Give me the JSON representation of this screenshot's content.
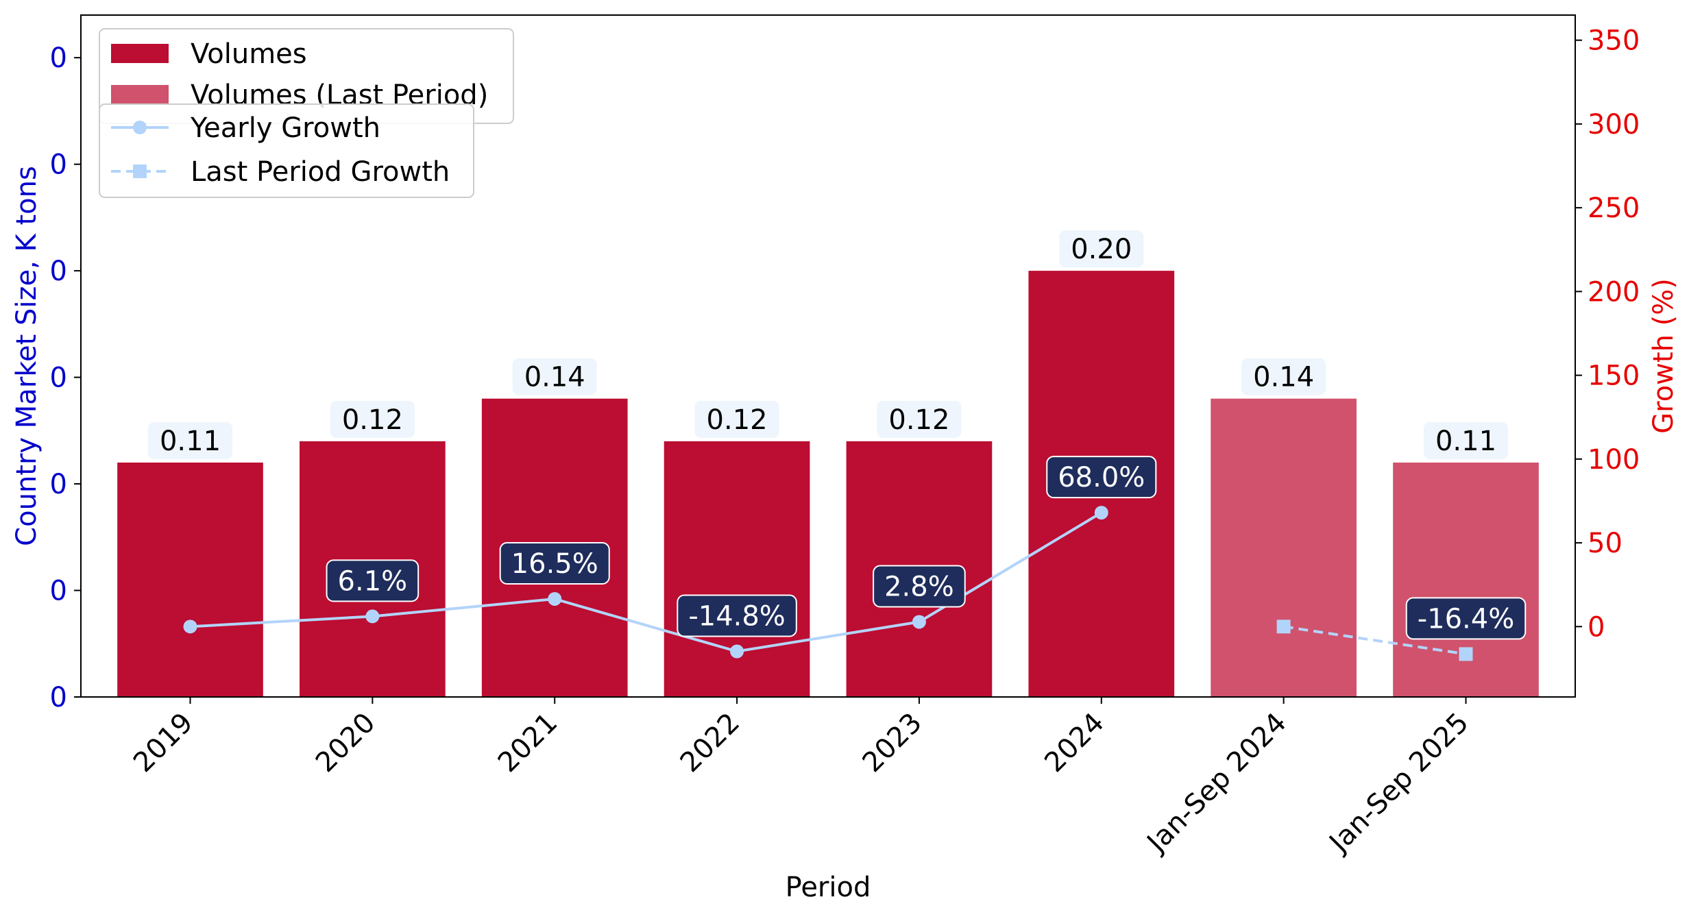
{
  "chart_data": {
    "type": "bar",
    "categories": [
      "2019",
      "2020",
      "2021",
      "2022",
      "2023",
      "2024",
      "Jan-Sep 2024",
      "Jan-Sep 2025"
    ],
    "series": [
      {
        "name": "Volumes",
        "axis": "left",
        "values": [
          0.11,
          0.12,
          0.14,
          0.12,
          0.12,
          0.2,
          null,
          null
        ],
        "labels": [
          "0.11",
          "0.12",
          "0.14",
          "0.12",
          "0.12",
          "0.20",
          null,
          null
        ],
        "color": "#bc0d32"
      },
      {
        "name": "Volumes (Last Period)",
        "axis": "left",
        "values": [
          null,
          null,
          null,
          null,
          null,
          null,
          0.14,
          0.11
        ],
        "labels": [
          null,
          null,
          null,
          null,
          null,
          null,
          "0.14",
          "0.11"
        ],
        "color": "#d0526c"
      },
      {
        "name": "Yearly Growth",
        "type": "line",
        "axis": "right",
        "marker": "circle",
        "line_style": "solid",
        "values": [
          0,
          6.1,
          16.5,
          -14.8,
          2.8,
          68.0,
          null,
          null
        ],
        "labels": [
          null,
          "6.1%",
          "16.5%",
          "-14.8%",
          "2.8%",
          "68.0%",
          null,
          null
        ],
        "color": "#b3d4fa"
      },
      {
        "name": "Last Period Growth",
        "type": "line",
        "axis": "right",
        "marker": "square",
        "line_style": "dashed",
        "values": [
          null,
          null,
          null,
          null,
          null,
          null,
          0,
          -16.4
        ],
        "labels": [
          null,
          null,
          null,
          null,
          null,
          null,
          null,
          "-16.4%"
        ],
        "color": "#b3d4fa"
      }
    ],
    "xlabel": "Period",
    "ylabel": "Country Market Size, K tons",
    "ylabel_right": "Growth (%)",
    "ylim": [
      0,
      0.32
    ],
    "yticks": [
      0,
      0.05,
      0.1,
      0.15,
      0.2,
      0.25,
      0.3
    ],
    "ytick_labels": [
      "0",
      "0",
      "0",
      "0",
      "0",
      "0",
      "0"
    ],
    "ylim_right": [
      -42,
      365
    ],
    "yticks_right": [
      0,
      50,
      100,
      150,
      200,
      250,
      300,
      350
    ],
    "ytick_labels_right": [
      "0",
      "50",
      "100",
      "150",
      "200",
      "250",
      "300",
      "350"
    ],
    "grid": false,
    "legend_placement": "top-left",
    "colors": {
      "left_axis": "#0000cc",
      "right_axis": "#e60000",
      "growth_label_bg": "#1f2d5c",
      "value_label_bg": "#eef5fc"
    }
  }
}
